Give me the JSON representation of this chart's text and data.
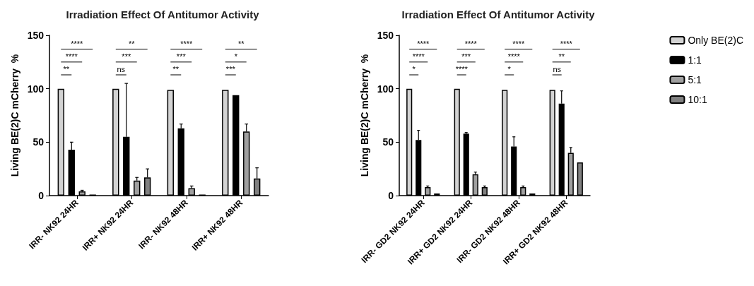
{
  "chart_data": [
    {
      "type": "bar",
      "title": "Irradiation Effect Of Antitumor Activity",
      "ylabel": "Living BE(2)C mCherry  %",
      "categories": [
        "IRR- NK92 24HR",
        "IRR+ NK92 24HR",
        "IRR- NK92 48HR",
        "IRR+ NK92 48HR"
      ],
      "ylim": [
        0,
        150
      ],
      "yticks": [
        0,
        50,
        100,
        150
      ],
      "grid": false,
      "legend": false,
      "series": [
        {
          "color": "#d3d3d3",
          "values": [
            100,
            100,
            99,
            99
          ],
          "errors": [
            null,
            null,
            null,
            null
          ]
        },
        {
          "color": "#000000",
          "values": [
            43,
            55,
            63,
            94
          ],
          "errors": [
            [
              43,
              50
            ],
            [
              55,
              105
            ],
            [
              63,
              67
            ],
            null
          ]
        },
        {
          "color": "#a0a0a0",
          "values": [
            4,
            14,
            7,
            60
          ],
          "errors": [
            [
              4,
              5
            ],
            [
              14,
              17
            ],
            [
              7,
              9
            ],
            [
              60,
              67
            ]
          ]
        },
        {
          "color": "#808080",
          "values": [
            1,
            17,
            1,
            16
          ],
          "errors": [
            null,
            [
              17,
              25
            ],
            null,
            [
              16,
              26
            ]
          ]
        }
      ],
      "annotations": [
        "****",
        "****",
        "**",
        "**",
        "***",
        "ns",
        "****",
        "***",
        "**",
        "**",
        "*",
        "***"
      ]
    },
    {
      "type": "bar",
      "title": "Irradiation Effect Of Antitumor Activity",
      "ylabel": "Living BE(2)C mCherry  %",
      "categories": [
        "IRR- GD2 NK92 24HR",
        "IRR+ GD2 NK92 24HR",
        "IRR- GD2 NK92 48HR",
        "IRR+ GD2 NK92 48HR"
      ],
      "ylim": [
        0,
        150
      ],
      "yticks": [
        0,
        50,
        100,
        150
      ],
      "grid": false,
      "legend": "right",
      "series": [
        {
          "name": "Only BE(2)C",
          "color": "#d3d3d3",
          "values": [
            100,
            100,
            99,
            99
          ],
          "errors": [
            null,
            null,
            null,
            null
          ]
        },
        {
          "name": "1:1",
          "color": "#000000",
          "values": [
            52,
            58,
            46,
            86
          ],
          "errors": [
            [
              52,
              61
            ],
            [
              58,
              59
            ],
            [
              46,
              55
            ],
            [
              86,
              98
            ]
          ]
        },
        {
          "name": "5:1",
          "color": "#a0a0a0",
          "values": [
            8,
            20,
            8,
            40
          ],
          "errors": [
            [
              8,
              9
            ],
            [
              20,
              22
            ],
            [
              8,
              9
            ],
            [
              40,
              45
            ]
          ]
        },
        {
          "name": "10:1",
          "color": "#808080",
          "values": [
            2,
            8,
            2,
            31
          ],
          "errors": [
            null,
            [
              8,
              9
            ],
            null,
            null
          ]
        }
      ],
      "annotations": [
        "****",
        "****",
        "*",
        "****",
        "***",
        "****",
        "****",
        "****",
        "*",
        "****",
        "**",
        "ns"
      ]
    }
  ]
}
